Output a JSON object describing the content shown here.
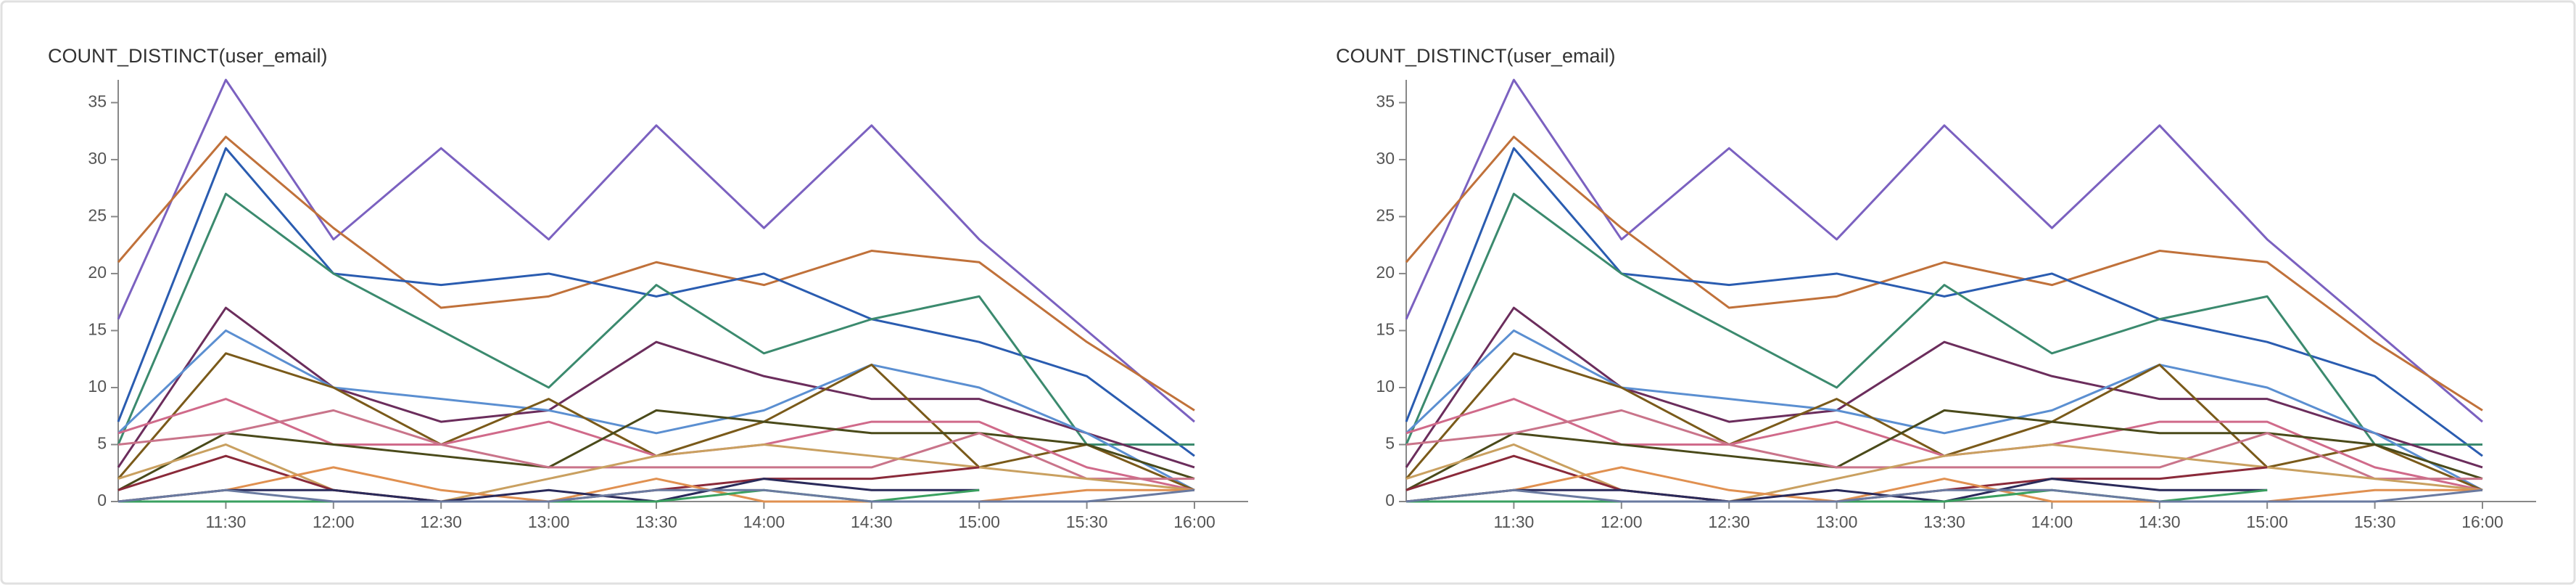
{
  "chart_data": [
    {
      "type": "line",
      "title": "COUNT_DISTINCT(user_email)",
      "categories": [
        null,
        "11:30",
        "12:00",
        "12:30",
        "13:00",
        "13:30",
        "14:00",
        "14:30",
        "15:00",
        "15:30",
        "16:00"
      ],
      "ylim": [
        0,
        37
      ],
      "yticks": [
        0,
        5,
        10,
        15,
        20,
        25,
        30,
        35
      ],
      "series": [
        {
          "color": "#7b61c0",
          "values": [
            16,
            37,
            23,
            31,
            23,
            33,
            24,
            33,
            23,
            15,
            7
          ]
        },
        {
          "color": "#c0713a",
          "values": [
            21,
            32,
            24,
            17,
            18,
            21,
            19,
            22,
            21,
            14,
            8
          ]
        },
        {
          "color": "#2a5cb0",
          "values": [
            7,
            31,
            20,
            19,
            20,
            18,
            20,
            16,
            14,
            11,
            4
          ]
        },
        {
          "color": "#3b8a6e",
          "values": [
            5,
            27,
            20,
            15,
            10,
            19,
            13,
            16,
            18,
            5,
            5
          ]
        },
        {
          "color": "#6b2d5c",
          "values": [
            3,
            17,
            10,
            7,
            8,
            14,
            11,
            9,
            9,
            6,
            3
          ]
        },
        {
          "color": "#5b8fd1",
          "values": [
            6,
            15,
            10,
            9,
            8,
            6,
            8,
            12,
            10,
            6,
            1
          ]
        },
        {
          "color": "#7a5a1a",
          "values": [
            2,
            13,
            10,
            5,
            9,
            4,
            7,
            12,
            3,
            5,
            1
          ]
        },
        {
          "color": "#d06a8a",
          "values": [
            6,
            9,
            5,
            5,
            7,
            4,
            5,
            7,
            7,
            3,
            1
          ]
        },
        {
          "color": "#4a4a1a",
          "values": [
            1,
            6,
            5,
            4,
            3,
            8,
            7,
            6,
            6,
            5,
            2
          ]
        },
        {
          "color": "#c9748a",
          "values": [
            5,
            6,
            8,
            5,
            3,
            3,
            3,
            3,
            6,
            2,
            2
          ]
        },
        {
          "color": "#c9a060",
          "values": [
            2,
            5,
            1,
            0,
            2,
            4,
            5,
            4,
            3,
            2,
            1
          ]
        },
        {
          "color": "#8a2a3a",
          "values": [
            1,
            4,
            1,
            0,
            0,
            1,
            2,
            2,
            3,
            null,
            null
          ]
        },
        {
          "color": "#e09050",
          "values": [
            0,
            1,
            3,
            1,
            0,
            2,
            0,
            0,
            0,
            1,
            1
          ]
        },
        {
          "color": "#2a2a5a",
          "values": [
            0,
            1,
            1,
            0,
            1,
            0,
            2,
            1,
            1,
            null,
            null
          ]
        },
        {
          "color": "#3aa060",
          "values": [
            0,
            0,
            0,
            0,
            0,
            0,
            1,
            0,
            1,
            null,
            null
          ]
        },
        {
          "color": "#6a7aa0",
          "values": [
            0,
            1,
            0,
            0,
            0,
            1,
            1,
            0,
            0,
            0,
            1
          ]
        }
      ]
    },
    {
      "type": "line",
      "title": "COUNT_DISTINCT(user_email)",
      "categories": [
        null,
        "11:30",
        "12:00",
        "12:30",
        "13:00",
        "13:30",
        "14:00",
        "14:30",
        "15:00",
        "15:30",
        "16:00"
      ],
      "ylim": [
        0,
        37
      ],
      "yticks": [
        0,
        5,
        10,
        15,
        20,
        25,
        30,
        35
      ],
      "series": [
        {
          "color": "#7b61c0",
          "values": [
            16,
            37,
            23,
            31,
            23,
            33,
            24,
            33,
            23,
            15,
            7
          ]
        },
        {
          "color": "#c0713a",
          "values": [
            21,
            32,
            24,
            17,
            18,
            21,
            19,
            22,
            21,
            14,
            8
          ]
        },
        {
          "color": "#2a5cb0",
          "values": [
            7,
            31,
            20,
            19,
            20,
            18,
            20,
            16,
            14,
            11,
            4
          ]
        },
        {
          "color": "#3b8a6e",
          "values": [
            5,
            27,
            20,
            15,
            10,
            19,
            13,
            16,
            18,
            5,
            5
          ]
        },
        {
          "color": "#6b2d5c",
          "values": [
            3,
            17,
            10,
            7,
            8,
            14,
            11,
            9,
            9,
            6,
            3
          ]
        },
        {
          "color": "#5b8fd1",
          "values": [
            6,
            15,
            10,
            9,
            8,
            6,
            8,
            12,
            10,
            6,
            1
          ]
        },
        {
          "color": "#7a5a1a",
          "values": [
            2,
            13,
            10,
            5,
            9,
            4,
            7,
            12,
            3,
            5,
            1
          ]
        },
        {
          "color": "#d06a8a",
          "values": [
            6,
            9,
            5,
            5,
            7,
            4,
            5,
            7,
            7,
            3,
            1
          ]
        },
        {
          "color": "#4a4a1a",
          "values": [
            1,
            6,
            5,
            4,
            3,
            8,
            7,
            6,
            6,
            5,
            2
          ]
        },
        {
          "color": "#c9748a",
          "values": [
            5,
            6,
            8,
            5,
            3,
            3,
            3,
            3,
            6,
            2,
            2
          ]
        },
        {
          "color": "#c9a060",
          "values": [
            2,
            5,
            1,
            0,
            2,
            4,
            5,
            4,
            3,
            2,
            1
          ]
        },
        {
          "color": "#8a2a3a",
          "values": [
            1,
            4,
            1,
            0,
            0,
            1,
            2,
            2,
            3,
            null,
            null
          ]
        },
        {
          "color": "#e09050",
          "values": [
            0,
            1,
            3,
            1,
            0,
            2,
            0,
            0,
            0,
            1,
            1
          ]
        },
        {
          "color": "#2a2a5a",
          "values": [
            0,
            1,
            1,
            0,
            1,
            0,
            2,
            1,
            1,
            null,
            null
          ]
        },
        {
          "color": "#3aa060",
          "values": [
            0,
            0,
            0,
            0,
            0,
            0,
            1,
            0,
            1,
            null,
            null
          ]
        },
        {
          "color": "#6a7aa0",
          "values": [
            0,
            1,
            0,
            0,
            0,
            1,
            1,
            0,
            0,
            0,
            1
          ]
        }
      ]
    }
  ]
}
